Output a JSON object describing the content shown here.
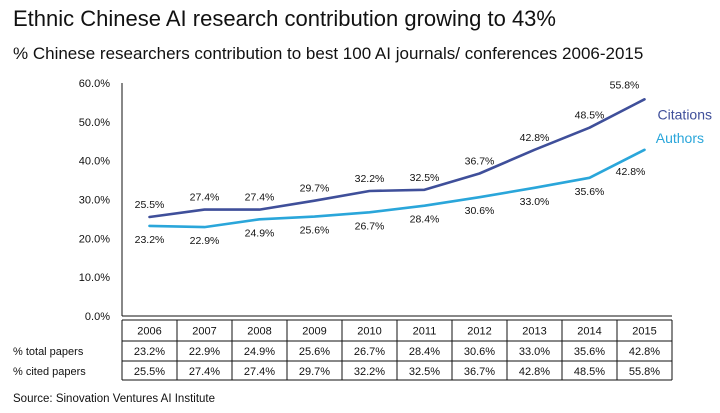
{
  "title": "Ethnic Chinese AI research contribution growing to 43%",
  "subtitle": "% Chinese researchers contribution to best 100 AI journals/ conferences 2006-2015",
  "source": "Source: Sinovation Ventures AI Institute",
  "colors": {
    "citations": "#3f4f9a",
    "authors": "#2aa6da",
    "axis": "#111111"
  },
  "chart_data": {
    "type": "line",
    "title": "Ethnic Chinese AI research contribution growing to 43%",
    "subtitle": "% Chinese researchers contribution to best 100 AI journals/ conferences 2006-2015",
    "xlabel": "",
    "ylabel": "",
    "x": [
      "2006",
      "2007",
      "2008",
      "2009",
      "2010",
      "2011",
      "2012",
      "2013",
      "2014",
      "2015"
    ],
    "ylim": [
      0,
      60
    ],
    "yticks": [
      "0.0%",
      "10.0%",
      "20.0%",
      "30.0%",
      "40.0%",
      "50.0%",
      "60.0%"
    ],
    "grid": false,
    "series": [
      {
        "key": "citations",
        "name": "Citations",
        "values": [
          25.5,
          27.4,
          27.4,
          29.7,
          32.2,
          32.5,
          36.7,
          42.8,
          48.5,
          55.8
        ],
        "labels": [
          "25.5%",
          "27.4%",
          "27.4%",
          "29.7%",
          "32.2%",
          "32.5%",
          "36.7%",
          "42.8%",
          "48.5%",
          "55.8%"
        ]
      },
      {
        "key": "authors",
        "name": "Authors",
        "values": [
          23.2,
          22.9,
          24.9,
          25.6,
          26.7,
          28.4,
          30.6,
          33.0,
          35.6,
          42.8
        ],
        "labels": [
          "23.2%",
          "22.9%",
          "24.9%",
          "25.6%",
          "26.7%",
          "28.4%",
          "30.6%",
          "33.0%",
          "35.6%",
          "42.8%"
        ]
      }
    ],
    "table": {
      "rows": [
        {
          "label": "% total papers",
          "values": [
            "23.2%",
            "22.9%",
            "24.9%",
            "25.6%",
            "26.7%",
            "28.4%",
            "30.6%",
            "33.0%",
            "35.6%",
            "42.8%"
          ]
        },
        {
          "label": "% cited papers",
          "values": [
            "25.5%",
            "27.4%",
            "27.4%",
            "29.7%",
            "32.2%",
            "32.5%",
            "36.7%",
            "42.8%",
            "48.5%",
            "55.8%"
          ]
        }
      ]
    }
  }
}
